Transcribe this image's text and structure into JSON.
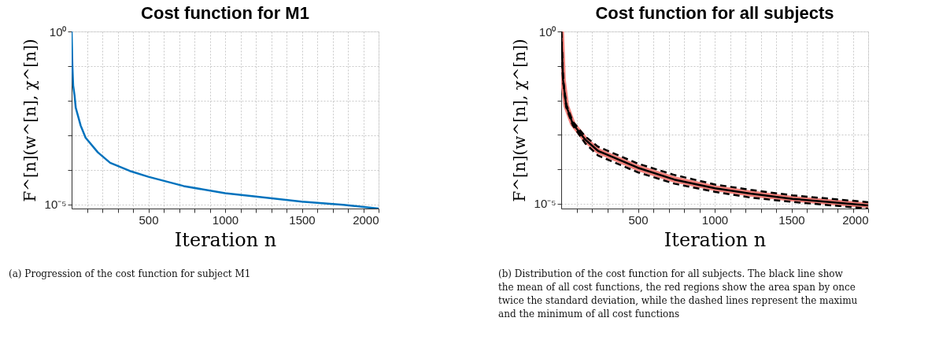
{
  "chart_data": [
    {
      "type": "line",
      "title": "Cost function for M1",
      "xlabel": "Iteration n",
      "ylabel": "F^[n](w^[n], χ^[n])",
      "log": "y",
      "grid": true,
      "xlim": [
        0,
        2000
      ],
      "xticks": [
        {
          "value": 100,
          "label": null
        },
        {
          "value": 200,
          "label": null
        },
        {
          "value": 300,
          "label": null
        },
        {
          "value": 400,
          "label": null
        },
        500,
        {
          "value": 600,
          "label": null
        },
        {
          "value": 700,
          "label": null
        },
        {
          "value": 800,
          "label": null
        },
        {
          "value": 900,
          "label": null
        },
        1000,
        {
          "value": 1100,
          "label": null
        },
        {
          "value": 1200,
          "label": null
        },
        {
          "value": 1300,
          "label": null
        },
        {
          "value": 1400,
          "label": null
        },
        1500,
        {
          "value": 1600,
          "label": null
        },
        {
          "value": 1700,
          "label": null
        },
        {
          "value": 1800,
          "label": null
        },
        {
          "value": 1900,
          "label": null
        },
        2000
      ],
      "ylim": [
        7.6e-06,
        1
      ],
      "yticks": [
        {
          "value": 1,
          "label": "10⁰"
        },
        {
          "value": 0.1,
          "label": null
        },
        {
          "value": 0.01,
          "label": null
        },
        {
          "value": 0.001,
          "label": null
        },
        {
          "value": 0.0001,
          "label": null
        },
        {
          "value": 1e-05,
          "label": "10⁻⁵"
        }
      ],
      "x": [
        0,
        5,
        10,
        19,
        27,
        59,
        91,
        171,
        251,
        379,
        500,
        730,
        1000,
        1200,
        1500,
        1770,
        2000
      ],
      "series": [
        {
          "color": "#0072bd",
          "line_style": "solid",
          "values": [
            1,
            0.1,
            0.0275,
            0.0141,
            0.0062,
            0.0019,
            0.00085,
            0.00032,
            0.00016,
            9.3e-05,
            6.3e-05,
            3.4e-05,
            2.1e-05,
            1.7e-05,
            1.2e-05,
            9.8e-06,
            7.6e-06
          ]
        }
      ],
      "annotations": [
        "(a) Progression of the cost function for subject M1"
      ]
    },
    {
      "type": "line",
      "title": "Cost function for all subjects",
      "xlabel": "Iteration n",
      "ylabel": "F^[n](w^[n], χ^[n])",
      "log": "y",
      "grid": true,
      "xlim": [
        0,
        2000
      ],
      "xticks": [
        {
          "value": 100,
          "label": null
        },
        {
          "value": 200,
          "label": null
        },
        {
          "value": 300,
          "label": null
        },
        {
          "value": 400,
          "label": null
        },
        500,
        {
          "value": 600,
          "label": null
        },
        {
          "value": 700,
          "label": null
        },
        {
          "value": 800,
          "label": null
        },
        {
          "value": 900,
          "label": null
        },
        1000,
        {
          "value": 1100,
          "label": null
        },
        {
          "value": 1200,
          "label": null
        },
        {
          "value": 1300,
          "label": null
        },
        {
          "value": 1400,
          "label": null
        },
        1500,
        {
          "value": 1600,
          "label": null
        },
        {
          "value": 1700,
          "label": null
        },
        {
          "value": 1800,
          "label": null
        },
        {
          "value": 1900,
          "label": null
        },
        2000
      ],
      "ylim": [
        7.2e-06,
        1
      ],
      "yticks": [
        {
          "value": 1,
          "label": "10⁰"
        },
        {
          "value": 0.1,
          "label": null
        },
        {
          "value": 0.01,
          "label": null
        },
        {
          "value": 0.001,
          "label": null
        },
        {
          "value": 0.0001,
          "label": null
        },
        {
          "value": 1e-05,
          "label": "10⁻⁵"
        }
      ],
      "x": [
        0,
        12,
        33,
        75,
        157,
        240,
        500,
        737,
        1002,
        1234,
        1507,
        2000
      ],
      "series": [
        {
          "color": "#f4807a",
          "line_style": "solid",
          "values": [
            1,
            0.039,
            0.0069,
            0.0021,
            0.00072,
            0.00034,
            0.00011,
            5e-05,
            2.8e-05,
            1.95e-05,
            1.38e-05,
            8.9e-06
          ],
          "upper": [
            1,
            0.041,
            0.0073,
            0.0023,
            0.00084,
            0.00041,
            0.000135,
            6.2e-05,
            3.4e-05,
            2.4e-05,
            1.65e-05,
            1.05e-05
          ],
          "lower": [
            1,
            0.037,
            0.0065,
            0.00195,
            0.0006,
            0.00028,
            8.8e-05,
            4.1e-05,
            2.35e-05,
            1.6e-05,
            1.17e-05,
            7.5e-06
          ]
        },
        {
          "color": "#000000",
          "line_style": "solid",
          "values": [
            1,
            0.039,
            0.0069,
            0.0021,
            0.00072,
            0.00034,
            0.00011,
            5e-05,
            2.8e-05,
            1.95e-05,
            1.38e-05,
            8.9e-06
          ]
        },
        {
          "color": "#000000",
          "line_style": "dashed",
          "values": [
            1,
            0.042,
            0.0076,
            0.0024,
            0.00089,
            0.00045,
            0.000145,
            6.8e-05,
            3.6e-05,
            2.5e-05,
            1.74e-05,
            1.1e-05
          ]
        },
        {
          "color": "#000000",
          "line_style": "dashed",
          "values": [
            1,
            0.036,
            0.0063,
            0.0019,
            0.00056,
            0.00025,
            8.1e-05,
            3.8e-05,
            2.2e-05,
            1.5e-05,
            1.12e-05,
            7.2e-06
          ]
        }
      ],
      "annotations": [
        "(b) Distribution of the cost function for all subjects.  The black line show",
        "the mean of all cost functions, the red regions show the area span by once",
        "twice the standard deviation, while the dashed lines represent the maximu",
        "and the minimum of all cost functions"
      ]
    }
  ]
}
